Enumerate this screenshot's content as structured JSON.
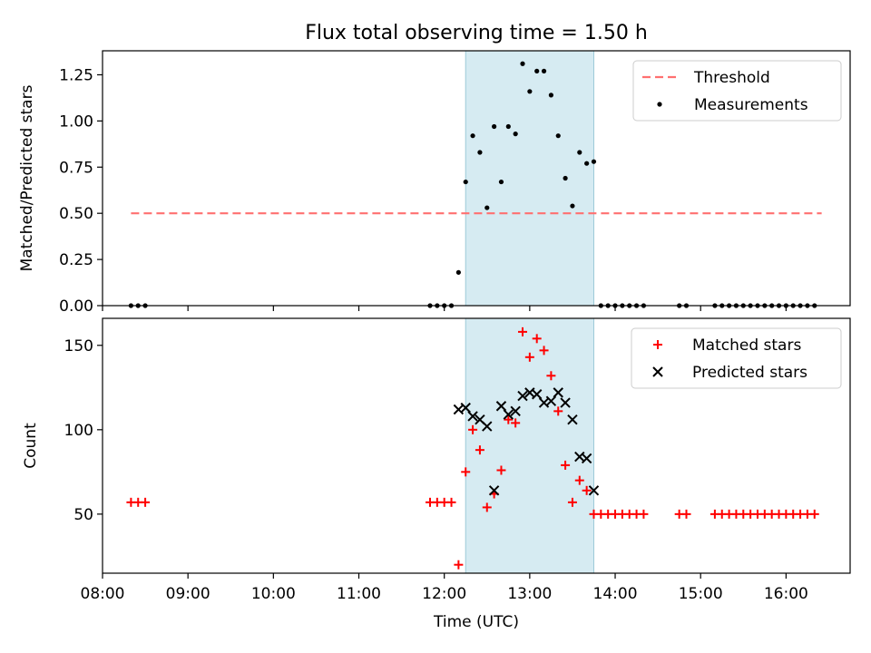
{
  "figure": {
    "title": "Flux total observing time = 1.50 h",
    "xlabel": "Time (UTC)",
    "highlight_color": "#add8e6",
    "highlight_range": [
      "12:15",
      "13:45"
    ]
  },
  "chart_data": [
    {
      "type": "scatter",
      "ylabel": "Matched/Predicted stars",
      "ylim": [
        0,
        1.38
      ],
      "yticks": [
        "0.00",
        "0.25",
        "0.50",
        "0.75",
        "1.00",
        "1.25"
      ],
      "x_axis": "time (HH:MM UTC)",
      "xlim": [
        "08:00",
        "16:45"
      ],
      "xtick_labels_shown": false,
      "legend": {
        "placement": "upper right",
        "entries": [
          {
            "label": "Threshold",
            "style": "dashed-line",
            "color": "#ff7070"
          },
          {
            "label": "Measurements",
            "style": "dot",
            "color": "#000000"
          }
        ]
      },
      "series": [
        {
          "name": "Threshold",
          "kind": "line",
          "color": "#ff7070",
          "dash": true,
          "x": [
            "08:20",
            "16:25"
          ],
          "y": [
            0.5,
            0.5
          ]
        },
        {
          "name": "Measurements",
          "kind": "dot",
          "color": "#000000",
          "x": [
            "08:20",
            "08:25",
            "08:30",
            "11:50",
            "11:55",
            "12:00",
            "12:05",
            "12:10",
            "12:15",
            "12:20",
            "12:25",
            "12:30",
            "12:35",
            "12:40",
            "12:45",
            "12:50",
            "12:55",
            "13:00",
            "13:05",
            "13:10",
            "13:15",
            "13:20",
            "13:25",
            "13:30",
            "13:35",
            "13:40",
            "13:45",
            "13:50",
            "13:55",
            "14:00",
            "14:05",
            "14:10",
            "14:15",
            "14:20",
            "14:45",
            "14:50",
            "15:10",
            "15:15",
            "15:20",
            "15:25",
            "15:30",
            "15:35",
            "15:40",
            "15:45",
            "15:50",
            "15:55",
            "16:00",
            "16:05",
            "16:10",
            "16:15",
            "16:20"
          ],
          "y": [
            0,
            0,
            0,
            0,
            0,
            0,
            0,
            0.18,
            0.67,
            0.92,
            0.83,
            0.53,
            0.97,
            0.67,
            0.97,
            0.93,
            1.31,
            1.16,
            1.27,
            1.27,
            1.14,
            0.92,
            0.69,
            0.54,
            0.83,
            0.77,
            0.78,
            0,
            0,
            0,
            0,
            0,
            0,
            0,
            0,
            0,
            0,
            0,
            0,
            0,
            0,
            0,
            0,
            0,
            0,
            0,
            0,
            0,
            0,
            0,
            0
          ]
        }
      ]
    },
    {
      "type": "scatter",
      "ylabel": "Count",
      "ylim": [
        15,
        166
      ],
      "yticks": [
        "50",
        "100",
        "150"
      ],
      "x_axis": "time (HH:MM UTC)",
      "xlim": [
        "08:00",
        "16:45"
      ],
      "xticks": [
        "08:00",
        "09:00",
        "10:00",
        "11:00",
        "12:00",
        "13:00",
        "14:00",
        "15:00",
        "16:00"
      ],
      "legend": {
        "placement": "upper right",
        "entries": [
          {
            "label": "Matched stars",
            "style": "plus",
            "color": "#ff0000"
          },
          {
            "label": "Predicted stars",
            "style": "x",
            "color": "#000000"
          }
        ]
      },
      "series": [
        {
          "name": "Matched stars",
          "kind": "plus",
          "color": "#ff0000",
          "x": [
            "08:20",
            "08:25",
            "08:30",
            "11:50",
            "11:55",
            "12:00",
            "12:05",
            "12:10",
            "12:15",
            "12:20",
            "12:25",
            "12:30",
            "12:35",
            "12:40",
            "12:45",
            "12:50",
            "12:55",
            "13:00",
            "13:05",
            "13:10",
            "13:15",
            "13:20",
            "13:25",
            "13:30",
            "13:35",
            "13:40",
            "13:45",
            "13:50",
            "13:55",
            "14:00",
            "14:05",
            "14:10",
            "14:15",
            "14:20",
            "14:45",
            "14:50",
            "15:10",
            "15:15",
            "15:20",
            "15:25",
            "15:30",
            "15:35",
            "15:40",
            "15:45",
            "15:50",
            "15:55",
            "16:00",
            "16:05",
            "16:10",
            "16:15",
            "16:20"
          ],
          "y": [
            57,
            57,
            57,
            57,
            57,
            57,
            57,
            20,
            75,
            100,
            88,
            54,
            62,
            76,
            106,
            104,
            158,
            143,
            154,
            147,
            132,
            111,
            79,
            57,
            70,
            64,
            50,
            50,
            50,
            50,
            50,
            50,
            50,
            50,
            50,
            50,
            50,
            50,
            50,
            50,
            50,
            50,
            50,
            50,
            50,
            50,
            50,
            50,
            50,
            50,
            50
          ]
        },
        {
          "name": "Predicted stars",
          "kind": "x",
          "color": "#000000",
          "x": [
            "12:10",
            "12:15",
            "12:20",
            "12:25",
            "12:30",
            "12:35",
            "12:40",
            "12:45",
            "12:50",
            "12:55",
            "13:00",
            "13:05",
            "13:10",
            "13:15",
            "13:20",
            "13:25",
            "13:30",
            "13:35",
            "13:40",
            "13:45"
          ],
          "y": [
            112,
            113,
            108,
            106,
            102,
            64,
            114,
            109,
            111,
            120,
            122,
            121,
            116,
            117,
            122,
            116,
            106,
            84,
            83,
            64
          ]
        }
      ]
    }
  ]
}
